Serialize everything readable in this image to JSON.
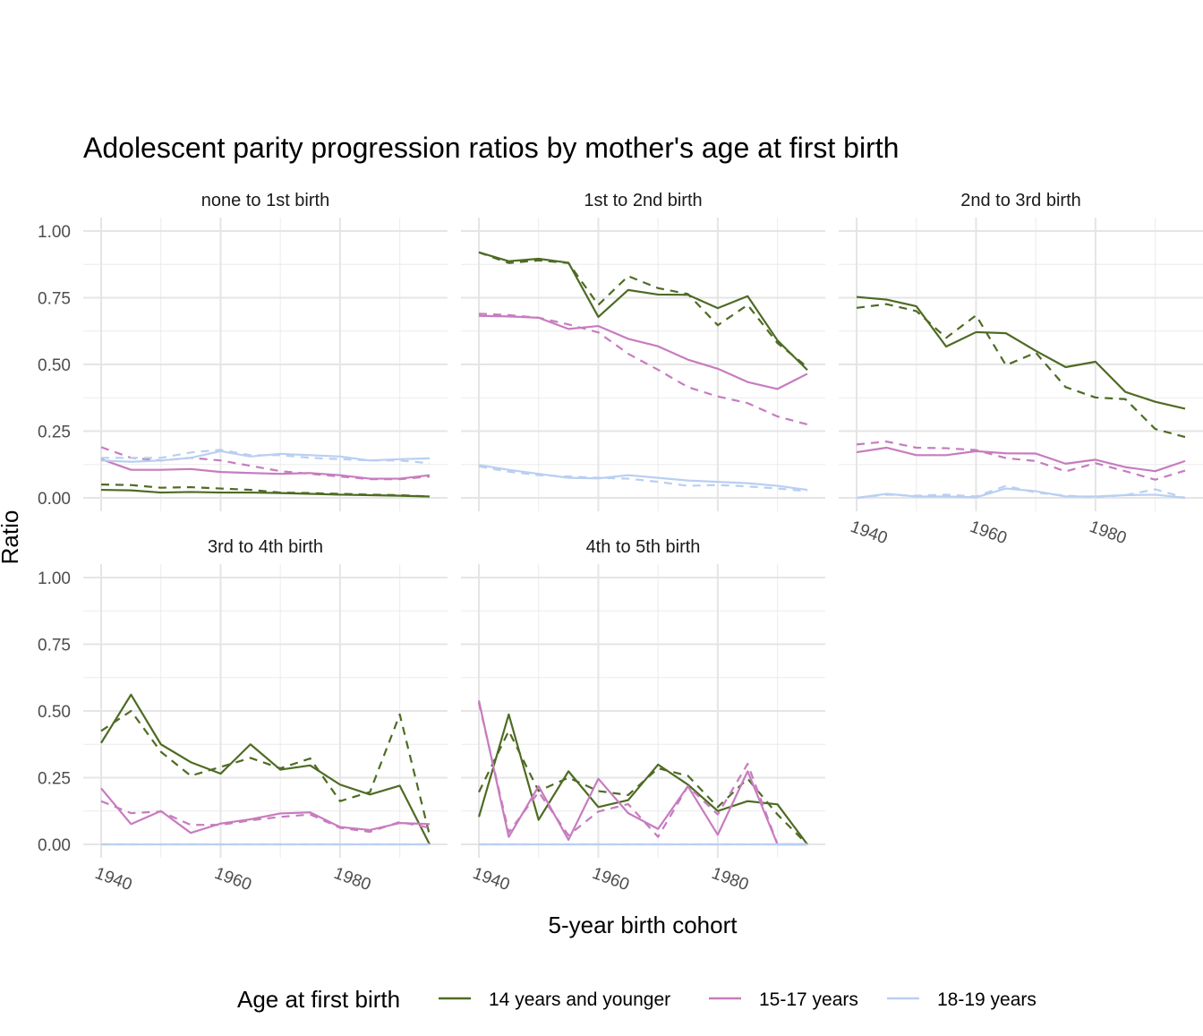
{
  "chart_data": {
    "type": "line",
    "title": "Adolescent parity progression ratios by mother's age at first birth",
    "xlabel": "5-year birth cohort",
    "ylabel": "Ratio",
    "xlim": [
      1937,
      1998
    ],
    "ylim": [
      0,
      1
    ],
    "x_ticks": [
      1940,
      1960,
      1980
    ],
    "y_ticks": [
      0,
      0.25,
      0.5,
      0.75,
      1
    ],
    "y_tick_labels": [
      "0.00",
      "0.25",
      "0.50",
      "0.75",
      "1.00"
    ],
    "grid": true,
    "legend": {
      "title": "Age at first birth",
      "placement": "bottom",
      "entries": [
        {
          "label": "14 years and younger",
          "color": "#4E6B23"
        },
        {
          "label": "15-17 years",
          "color": "#C77CBF"
        },
        {
          "label": "18-19 years",
          "color": "#B9CFF2"
        }
      ]
    },
    "x": [
      1940,
      1945,
      1950,
      1955,
      1960,
      1965,
      1970,
      1975,
      1980,
      1985,
      1990,
      1995
    ],
    "panels": [
      {
        "title": "none to 1st birth",
        "series": [
          {
            "group": 0,
            "linetype": "solid",
            "values": [
              0.03,
              0.028,
              0.02,
              0.022,
              0.02,
              0.02,
              0.018,
              0.015,
              0.012,
              0.01,
              0.008,
              0.005
            ]
          },
          {
            "group": 0,
            "linetype": "dashed",
            "values": [
              0.05,
              0.048,
              0.038,
              0.04,
              0.035,
              0.03,
              0.02,
              0.018,
              0.015,
              0.012,
              0.01,
              0.005
            ]
          },
          {
            "group": 1,
            "linetype": "solid",
            "values": [
              0.145,
              0.105,
              0.105,
              0.108,
              0.097,
              0.093,
              0.09,
              0.093,
              0.085,
              0.072,
              0.072,
              0.085
            ]
          },
          {
            "group": 1,
            "linetype": "dashed",
            "values": [
              0.19,
              0.15,
              0.14,
              0.15,
              0.14,
              0.12,
              0.1,
              0.09,
              0.08,
              0.07,
              0.07,
              0.08
            ]
          },
          {
            "group": 2,
            "linetype": "solid",
            "values": [
              0.14,
              0.135,
              0.14,
              0.15,
              0.175,
              0.155,
              0.165,
              0.16,
              0.155,
              0.14,
              0.145,
              0.148
            ]
          },
          {
            "group": 2,
            "linetype": "dashed",
            "values": [
              0.15,
              0.15,
              0.15,
              0.17,
              0.18,
              0.16,
              0.16,
              0.15,
              0.145,
              0.14,
              0.14,
              0.13
            ]
          }
        ]
      },
      {
        "title": "1st to 2nd birth",
        "series": [
          {
            "group": 0,
            "linetype": "solid",
            "values": [
              0.92,
              0.887,
              0.896,
              0.881,
              0.678,
              0.779,
              0.762,
              0.761,
              0.711,
              0.756,
              0.59,
              0.479
            ]
          },
          {
            "group": 0,
            "linetype": "dashed",
            "values": [
              0.92,
              0.88,
              0.89,
              0.88,
              0.723,
              0.831,
              0.786,
              0.764,
              0.647,
              0.723,
              0.58,
              0.49
            ]
          },
          {
            "group": 1,
            "linetype": "solid",
            "values": [
              0.682,
              0.68,
              0.675,
              0.633,
              0.644,
              0.596,
              0.568,
              0.518,
              0.484,
              0.434,
              0.408,
              0.465
            ]
          },
          {
            "group": 1,
            "linetype": "dashed",
            "values": [
              0.69,
              0.685,
              0.675,
              0.65,
              0.62,
              0.54,
              0.48,
              0.415,
              0.38,
              0.355,
              0.305,
              0.275
            ]
          },
          {
            "group": 2,
            "linetype": "solid",
            "values": [
              0.123,
              0.105,
              0.09,
              0.075,
              0.073,
              0.085,
              0.075,
              0.065,
              0.06,
              0.055,
              0.045,
              0.03
            ]
          },
          {
            "group": 2,
            "linetype": "dashed",
            "values": [
              0.118,
              0.098,
              0.085,
              0.08,
              0.075,
              0.072,
              0.06,
              0.045,
              0.048,
              0.043,
              0.035,
              0.025
            ]
          }
        ]
      },
      {
        "title": "2nd to 3rd birth",
        "series": [
          {
            "group": 0,
            "linetype": "solid",
            "values": [
              0.753,
              0.743,
              0.718,
              0.567,
              0.621,
              0.617,
              0.551,
              0.49,
              0.51,
              0.397,
              0.36,
              0.334
            ]
          },
          {
            "group": 0,
            "linetype": "dashed",
            "values": [
              0.712,
              0.726,
              0.7,
              0.6,
              0.684,
              0.497,
              0.544,
              0.415,
              0.376,
              0.37,
              0.258,
              0.228
            ]
          },
          {
            "group": 1,
            "linetype": "solid",
            "values": [
              0.171,
              0.188,
              0.16,
              0.16,
              0.175,
              0.167,
              0.166,
              0.128,
              0.143,
              0.115,
              0.1,
              0.138
            ]
          },
          {
            "group": 1,
            "linetype": "dashed",
            "values": [
              0.2,
              0.211,
              0.188,
              0.186,
              0.179,
              0.149,
              0.138,
              0.099,
              0.13,
              0.1,
              0.068,
              0.102
            ]
          },
          {
            "group": 2,
            "linetype": "solid",
            "values": [
              0,
              0.015,
              0.005,
              0.005,
              0.002,
              0.035,
              0.025,
              0.005,
              0.005,
              0.01,
              0.012,
              0
            ]
          },
          {
            "group": 2,
            "linetype": "dashed",
            "values": [
              0,
              0.012,
              0.008,
              0.012,
              0.005,
              0.045,
              0.02,
              0.008,
              0.003,
              0.01,
              0.032,
              0
            ]
          }
        ]
      },
      {
        "title": "3rd to 4th birth",
        "series": [
          {
            "group": 0,
            "linetype": "solid",
            "values": [
              0.38,
              0.561,
              0.375,
              0.308,
              0.265,
              0.375,
              0.28,
              0.296,
              0.224,
              0.187,
              0.22,
              0.0
            ]
          },
          {
            "group": 0,
            "linetype": "dashed",
            "values": [
              0.425,
              0.5,
              0.347,
              0.257,
              0.29,
              0.324,
              0.285,
              0.322,
              0.162,
              0.196,
              0.487,
              0.034
            ]
          },
          {
            "group": 1,
            "linetype": "solid",
            "values": [
              0.21,
              0.076,
              0.125,
              0.043,
              0.078,
              0.094,
              0.116,
              0.12,
              0.065,
              0.054,
              0.08,
              0.076
            ]
          },
          {
            "group": 1,
            "linetype": "dashed",
            "values": [
              0.162,
              0.117,
              0.123,
              0.073,
              0.073,
              0.09,
              0.103,
              0.112,
              0.062,
              0.047,
              0.084,
              0.062
            ]
          },
          {
            "group": 2,
            "linetype": "solid",
            "values": [
              0,
              0,
              0,
              0,
              0,
              0,
              0,
              0,
              0,
              0,
              0,
              0
            ]
          },
          {
            "group": 2,
            "linetype": "dashed",
            "values": [
              0,
              0,
              0,
              0,
              0,
              0,
              0,
              0,
              0,
              0,
              0,
              0
            ]
          }
        ]
      },
      {
        "title": "4th to 5th birth",
        "series": [
          {
            "group": 0,
            "linetype": "solid",
            "values": [
              0.103,
              0.487,
              0.092,
              0.274,
              0.14,
              0.166,
              0.299,
              0.224,
              0.125,
              0.162,
              0.15,
              0
            ]
          },
          {
            "group": 0,
            "linetype": "dashed",
            "values": [
              0.196,
              0.425,
              0.2,
              0.25,
              0.2,
              0.185,
              0.285,
              0.257,
              0.14,
              0.246,
              0.112,
              0
            ]
          },
          {
            "group": 1,
            "linetype": "solid",
            "values": [
              0.539,
              0.028,
              0.218,
              0.017,
              0.246,
              0.117,
              0.058,
              0.218,
              0.036,
              0.274,
              0,
              0
            ]
          },
          {
            "group": 1,
            "linetype": "dashed",
            "values": [
              0.531,
              0.045,
              0.196,
              0.034,
              0.123,
              0.151,
              0.028,
              0.218,
              0.112,
              0.302,
              0,
              0
            ]
          },
          {
            "group": 2,
            "linetype": "solid",
            "values": [
              0,
              0,
              0,
              0,
              0,
              0,
              0,
              0,
              0,
              0,
              0,
              0
            ]
          },
          {
            "group": 2,
            "linetype": "dashed",
            "values": [
              0,
              0,
              0,
              0,
              0,
              0,
              0,
              0,
              0,
              0,
              0,
              0
            ]
          }
        ]
      }
    ]
  }
}
